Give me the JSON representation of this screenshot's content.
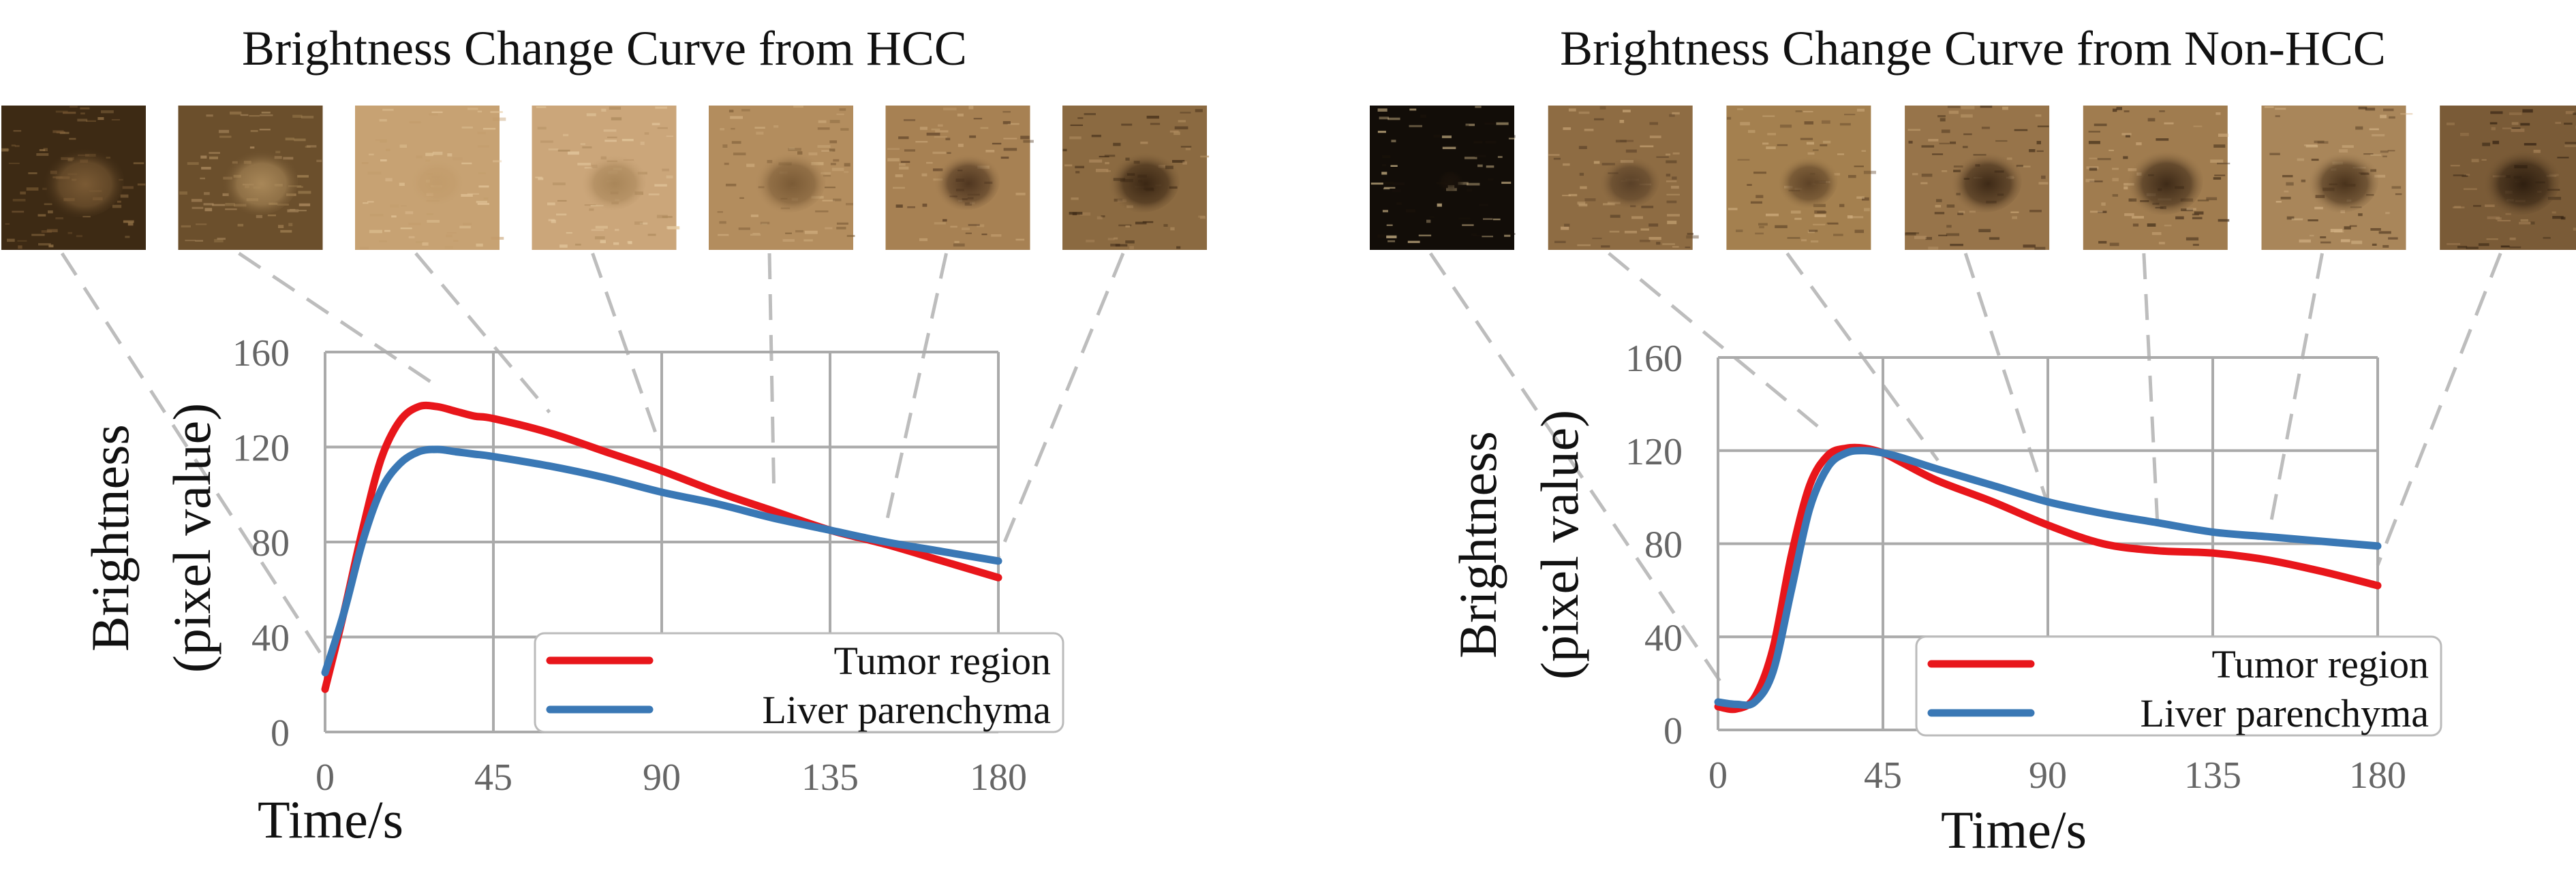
{
  "chart_data": [
    {
      "type": "line",
      "title": "Brightness Change Curve from HCC",
      "xlabel": "Time/s",
      "ylabel": [
        "Brightness",
        "(pixel value)"
      ],
      "xlim": [
        0,
        180
      ],
      "ylim": [
        0,
        160
      ],
      "x_ticks": [
        0,
        45,
        90,
        135,
        180
      ],
      "y_ticks": [
        0,
        40,
        80,
        120,
        160
      ],
      "grid": true,
      "legend_position": "bottom-right",
      "frame_times": [
        0,
        30,
        60,
        90,
        120,
        150,
        180
      ],
      "series": [
        {
          "name": "Tumor region",
          "color": "#e8161b",
          "x": [
            0,
            5,
            10,
            15,
            20,
            25,
            30,
            35,
            40,
            45,
            60,
            75,
            90,
            105,
            120,
            135,
            150,
            165,
            180
          ],
          "y": [
            18,
            50,
            85,
            115,
            131,
            137,
            137,
            135,
            133,
            132,
            126,
            118,
            110,
            101,
            93,
            85,
            79,
            72,
            65
          ]
        },
        {
          "name": "Liver parenchyma",
          "color": "#3a78b5",
          "x": [
            0,
            5,
            10,
            15,
            20,
            25,
            30,
            35,
            40,
            45,
            60,
            75,
            90,
            105,
            120,
            135,
            150,
            165,
            180
          ],
          "y": [
            25,
            50,
            80,
            102,
            113,
            118,
            119,
            118,
            117,
            116,
            112,
            107,
            101,
            96,
            90,
            85,
            80,
            76,
            72
          ]
        }
      ]
    },
    {
      "type": "line",
      "title": "Brightness Change Curve from Non-HCC",
      "xlabel": "Time/s",
      "ylabel": [
        "Brightness",
        "(pixel value)"
      ],
      "xlim": [
        0,
        180
      ],
      "ylim": [
        0,
        160
      ],
      "x_ticks": [
        0,
        45,
        90,
        135,
        180
      ],
      "y_ticks": [
        0,
        40,
        80,
        120,
        160
      ],
      "grid": true,
      "legend_position": "bottom-right",
      "frame_times": [
        0,
        30,
        60,
        90,
        120,
        150,
        180
      ],
      "series": [
        {
          "name": "Tumor region",
          "color": "#e8161b",
          "x": [
            0,
            5,
            10,
            15,
            20,
            25,
            30,
            35,
            40,
            45,
            50,
            60,
            75,
            90,
            105,
            120,
            135,
            150,
            165,
            180
          ],
          "y": [
            10,
            9,
            14,
            35,
            75,
            105,
            118,
            121,
            121,
            119,
            115,
            107,
            98,
            88,
            80,
            77,
            76,
            73,
            68,
            62
          ]
        },
        {
          "name": "Liver parenchyma",
          "color": "#3a78b5",
          "x": [
            0,
            5,
            10,
            15,
            20,
            25,
            30,
            35,
            40,
            45,
            50,
            60,
            75,
            90,
            105,
            120,
            135,
            150,
            165,
            180
          ],
          "y": [
            12,
            11,
            12,
            25,
            60,
            95,
            113,
            119,
            120,
            119,
            117,
            112,
            105,
            98,
            93,
            89,
            85,
            83,
            81,
            79
          ]
        }
      ]
    }
  ],
  "thumbnails": [
    [
      {
        "tone": "#3d2a14",
        "spot": "#7a5a34",
        "spot_size": 0.3,
        "light": "#9c7a4c"
      },
      {
        "tone": "#6b4f2c",
        "spot": "#a88758",
        "spot_size": 0.28,
        "light": "#b8966a"
      },
      {
        "tone": "#c7a273",
        "spot": "#c29c6b",
        "spot_size": 0.2,
        "light": "#e4c79b"
      },
      {
        "tone": "#cba67a",
        "spot": "#a98659",
        "spot_size": 0.24,
        "light": "#e6cba1"
      },
      {
        "tone": "#b38d5e",
        "spot": "#7b5b36",
        "spot_size": 0.26,
        "light": "#d3b182"
      },
      {
        "tone": "#a78153",
        "spot": "#4f3620",
        "spot_size": 0.24,
        "light": "#c9a677"
      },
      {
        "tone": "#8b6a41",
        "spot": "#3b2714",
        "spot_size": 0.26,
        "light": "#b28e61"
      }
    ],
    [
      {
        "tone": "#120d08",
        "spot": "#1a120a",
        "spot_size": 0.1,
        "light": "#e2c896"
      },
      {
        "tone": "#8e6c43",
        "spot": "#5a4128",
        "spot_size": 0.22,
        "light": "#c9a677"
      },
      {
        "tone": "#a4804f",
        "spot": "#5e4327",
        "spot_size": 0.22,
        "light": "#d3b182"
      },
      {
        "tone": "#97744a",
        "spot": "#3e2a17",
        "spot_size": 0.26,
        "light": "#c5a273"
      },
      {
        "tone": "#a07c4f",
        "spot": "#3f2b18",
        "spot_size": 0.28,
        "light": "#cfac7e"
      },
      {
        "tone": "#a9865a",
        "spot": "#4a331c",
        "spot_size": 0.26,
        "light": "#d6b689"
      },
      {
        "tone": "#7a5b37",
        "spot": "#2f1f10",
        "spot_size": 0.28,
        "light": "#a88459"
      }
    ]
  ]
}
